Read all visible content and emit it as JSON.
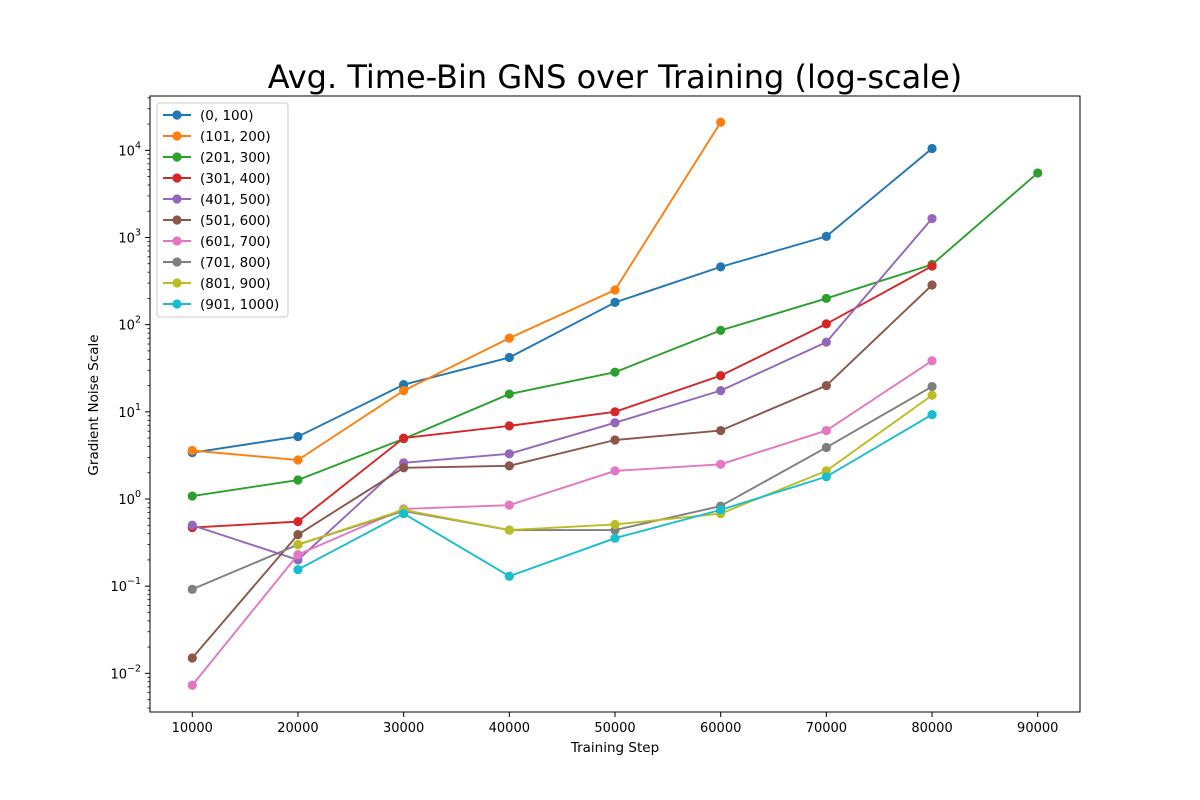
{
  "chart_data": {
    "type": "line",
    "title": "Avg. Time-Bin GNS over Training (log-scale)",
    "xlabel": "Training Step",
    "ylabel": "Gradient Noise Scale",
    "y_scale": "log",
    "xlim": [
      6000,
      94000
    ],
    "ylim": [
      0.0036,
      42000
    ],
    "x_ticks": [
      10000,
      20000,
      30000,
      40000,
      50000,
      60000,
      70000,
      80000,
      90000
    ],
    "y_ticks": [
      {
        "value": 0.01,
        "base": "10",
        "exp": "−2"
      },
      {
        "value": 0.1,
        "base": "10",
        "exp": "−1"
      },
      {
        "value": 1,
        "base": "10",
        "exp": "0"
      },
      {
        "value": 10,
        "base": "10",
        "exp": "1"
      },
      {
        "value": 100,
        "base": "10",
        "exp": "2"
      },
      {
        "value": 1000,
        "base": "10",
        "exp": "3"
      },
      {
        "value": 10000,
        "base": "10",
        "exp": "4"
      }
    ],
    "grid": false,
    "legend_position": "top-left",
    "series": [
      {
        "name": "(0, 100)",
        "color": "#1f77b4",
        "points": [
          [
            10000,
            3.4
          ],
          [
            20000,
            5.2
          ],
          [
            30000,
            20.5
          ],
          [
            40000,
            42
          ],
          [
            50000,
            180
          ],
          [
            60000,
            460
          ],
          [
            70000,
            1030
          ],
          [
            80000,
            10500
          ]
        ]
      },
      {
        "name": "(101, 200)",
        "color": "#ff7f0e",
        "points": [
          [
            10000,
            3.6
          ],
          [
            20000,
            2.8
          ],
          [
            30000,
            17.5
          ],
          [
            40000,
            70
          ],
          [
            50000,
            250
          ],
          [
            60000,
            21000
          ]
        ]
      },
      {
        "name": "(201, 300)",
        "color": "#2ca02c",
        "points": [
          [
            10000,
            1.08
          ],
          [
            20000,
            1.65
          ],
          [
            30000,
            4.9
          ],
          [
            40000,
            16
          ],
          [
            50000,
            28.5
          ],
          [
            60000,
            86
          ],
          [
            70000,
            200
          ],
          [
            80000,
            490
          ],
          [
            90000,
            5500
          ]
        ]
      },
      {
        "name": "(301, 400)",
        "color": "#d62728",
        "points": [
          [
            10000,
            0.47
          ],
          [
            20000,
            0.55
          ],
          [
            30000,
            5.0
          ],
          [
            40000,
            6.9
          ],
          [
            50000,
            10
          ],
          [
            60000,
            26
          ],
          [
            70000,
            102
          ],
          [
            80000,
            470
          ]
        ]
      },
      {
        "name": "(401, 500)",
        "color": "#9467bd",
        "points": [
          [
            10000,
            0.5
          ],
          [
            20000,
            0.2
          ],
          [
            30000,
            2.6
          ],
          [
            40000,
            3.3
          ],
          [
            50000,
            7.5
          ],
          [
            60000,
            17.5
          ],
          [
            70000,
            63
          ],
          [
            80000,
            1650
          ]
        ]
      },
      {
        "name": "(501, 600)",
        "color": "#8c564b",
        "points": [
          [
            10000,
            0.015
          ],
          [
            20000,
            0.39
          ],
          [
            30000,
            2.28
          ],
          [
            40000,
            2.4
          ],
          [
            50000,
            4.75
          ],
          [
            60000,
            6.1
          ],
          [
            70000,
            20
          ],
          [
            80000,
            285
          ]
        ]
      },
      {
        "name": "(601, 700)",
        "color": "#e377c2",
        "points": [
          [
            10000,
            0.0073
          ],
          [
            20000,
            0.23
          ],
          [
            30000,
            0.77
          ],
          [
            40000,
            0.85
          ],
          [
            50000,
            2.1
          ],
          [
            60000,
            2.5
          ],
          [
            70000,
            6.1
          ],
          [
            80000,
            38.5
          ]
        ]
      },
      {
        "name": "(701, 800)",
        "color": "#7f7f7f",
        "points": [
          [
            10000,
            0.092
          ],
          [
            20000,
            0.3
          ],
          [
            30000,
            0.73
          ],
          [
            40000,
            0.44
          ],
          [
            50000,
            0.44
          ],
          [
            60000,
            0.83
          ],
          [
            70000,
            3.9
          ],
          [
            80000,
            19.5
          ]
        ]
      },
      {
        "name": "(801, 900)",
        "color": "#bcbd22",
        "points": [
          [
            10000,
            null
          ],
          [
            20000,
            0.3
          ],
          [
            30000,
            0.75
          ],
          [
            40000,
            0.44
          ],
          [
            50000,
            0.51
          ],
          [
            60000,
            0.68
          ],
          [
            70000,
            2.1
          ],
          [
            80000,
            15.5
          ]
        ]
      },
      {
        "name": "(901, 1000)",
        "color": "#17becf",
        "points": [
          [
            10000,
            null
          ],
          [
            20000,
            0.155
          ],
          [
            30000,
            0.68
          ],
          [
            40000,
            0.13
          ],
          [
            50000,
            0.355
          ],
          [
            60000,
            0.75
          ],
          [
            70000,
            1.8
          ],
          [
            80000,
            9.3
          ]
        ]
      }
    ]
  }
}
